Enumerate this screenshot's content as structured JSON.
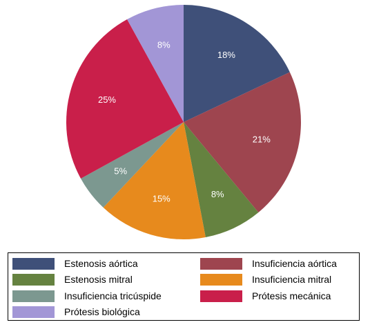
{
  "chart_data": {
    "type": "pie",
    "title": "",
    "slices": [
      {
        "name": "Estenosis aórtica",
        "value": 18,
        "label": "18%",
        "color": "#3f5079"
      },
      {
        "name": "Insuficiencia aórtica",
        "value": 21,
        "label": "21%",
        "color": "#9e454f"
      },
      {
        "name": "Estenosis mitral",
        "value": 8,
        "label": "8%",
        "color": "#658240"
      },
      {
        "name": "Insuficiencia mitral",
        "value": 15,
        "label": "15%",
        "color": "#e78a1d"
      },
      {
        "name": "Insuficiencia tricúspide",
        "value": 5,
        "label": "5%",
        "color": "#7c9890"
      },
      {
        "name": "Prótesis mecánica",
        "value": 25,
        "label": "25%",
        "color": "#c91f4a"
      },
      {
        "name": "Prótesis biológica",
        "value": 8,
        "label": "8%",
        "color": "#a296d6"
      }
    ],
    "legend_position": "bottom",
    "legend_entries": [
      "Estenosis aórtica",
      "Insuficiencia aórtica",
      "Estenosis mitral",
      "Insuficiencia mitral",
      "Insuficiencia tricúspide",
      "Prótesis mecánica",
      "Prótesis biológica"
    ]
  }
}
